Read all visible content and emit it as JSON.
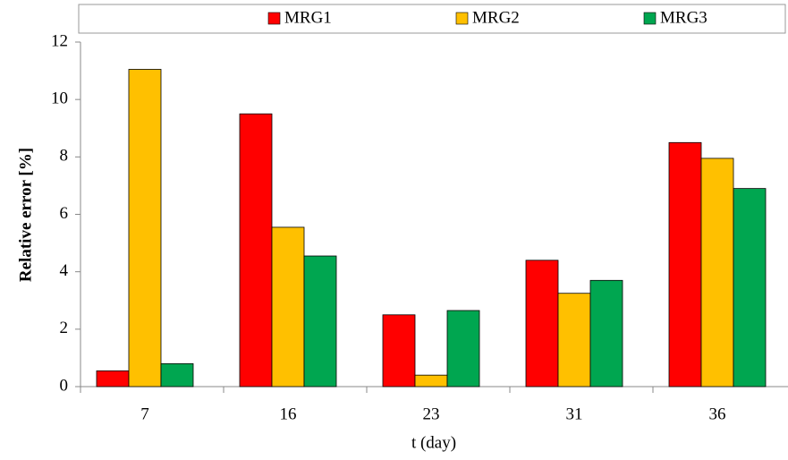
{
  "chart_data": {
    "type": "bar",
    "x_label": "t (day)",
    "y_label": "Relative error [%]",
    "categories": [
      "7",
      "16",
      "23",
      "31",
      "36"
    ],
    "series": [
      {
        "name": "MRG1",
        "color": "#ff0000",
        "values": [
          0.55,
          9.5,
          2.5,
          4.4,
          8.5
        ]
      },
      {
        "name": "MRG2",
        "color": "#ffc000",
        "values": [
          11.05,
          5.55,
          0.4,
          3.25,
          7.95
        ]
      },
      {
        "name": "MRG3",
        "color": "#00a650",
        "values": [
          0.8,
          4.55,
          2.65,
          3.7,
          6.9
        ]
      }
    ],
    "ylim": [
      0,
      12
    ],
    "yticks": [
      0,
      2,
      4,
      6,
      8,
      10,
      12
    ],
    "legend": "top"
  }
}
